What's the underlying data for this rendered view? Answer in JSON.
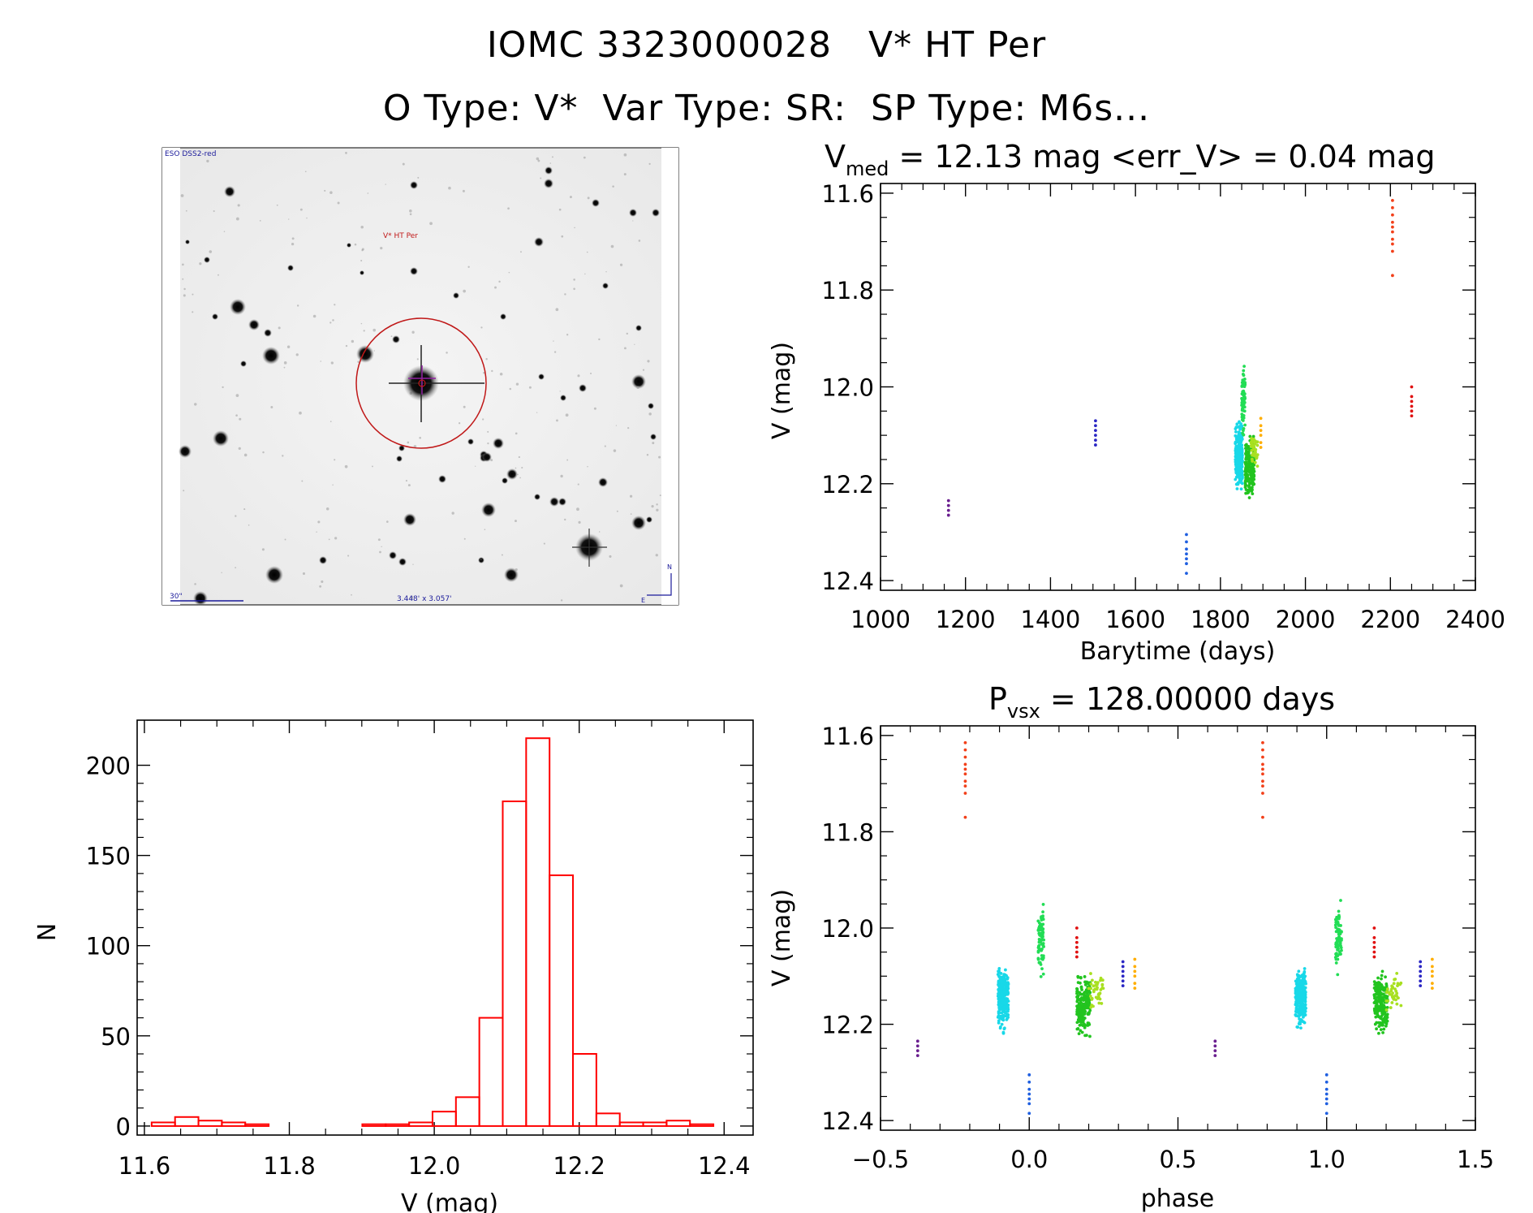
{
  "header": {
    "line1": "IOMC 3323000028   V* HT Per",
    "line2": "O Type: V*  Var Type: SR:  SP Type: M6s..."
  },
  "finder": {
    "survey_label": "ESO DSS2-red",
    "target_label": "V* HT Per",
    "scale_label": "30\"",
    "fov_label": "3.448' x 3.057'",
    "north_label": "N",
    "east_label": "E"
  },
  "chart_data": [
    {
      "id": "lightcurve",
      "type": "scatter",
      "title_main": "V",
      "title_sub": "med",
      "title_rest": " = 12.13 mag <err_V> = 0.04 mag",
      "xlabel": "Barytime (days)",
      "ylabel": "V (mag)",
      "xlim": [
        1000,
        2400
      ],
      "ylim": [
        12.42,
        11.58
      ],
      "xticks": [
        1000,
        1200,
        1400,
        1600,
        1800,
        2000,
        2200,
        2400
      ],
      "xtick_labels": [
        "1000",
        "1200",
        "1400",
        "1600",
        "1800",
        "2000",
        "2200",
        "2400"
      ],
      "yticks": [
        11.6,
        11.8,
        12.0,
        12.2,
        12.4
      ],
      "ytick_labels": [
        "11.6",
        "11.8",
        "12.0",
        "12.2",
        "12.4"
      ],
      "series": [
        {
          "name": "purple",
          "color": "#6a1f8f",
          "x": 1160,
          "y": [
            12.235,
            12.245,
            12.255,
            12.265
          ]
        },
        {
          "name": "indigo",
          "color": "#2a26c4",
          "x": 1506,
          "y": [
            12.07,
            12.08,
            12.09,
            12.1,
            12.11,
            12.12
          ]
        },
        {
          "name": "blue",
          "color": "#1f5fe0",
          "x": 1720,
          "y": [
            12.305,
            12.32,
            12.335,
            12.345,
            12.355,
            12.365,
            12.385
          ]
        },
        {
          "name": "cyan",
          "color": "#18d8e8",
          "x_range": [
            1835,
            1852
          ],
          "y_range": [
            12.06,
            12.23
          ],
          "n": 260
        },
        {
          "name": "spring-green",
          "color": "#22dd55",
          "x_range": [
            1850,
            1858
          ],
          "y_range": [
            11.93,
            12.12
          ],
          "n": 70
        },
        {
          "name": "green",
          "color": "#22c41f",
          "x_range": [
            1858,
            1880
          ],
          "y_range": [
            12.08,
            12.24
          ],
          "n": 200
        },
        {
          "name": "yellow-green",
          "color": "#a8e020",
          "x_range": [
            1872,
            1888
          ],
          "y_range": [
            12.08,
            12.18
          ],
          "n": 40
        },
        {
          "name": "orange",
          "color": "#ffae00",
          "x": 1895,
          "y": [
            12.065,
            12.08,
            12.09,
            12.1,
            12.115,
            12.125
          ]
        },
        {
          "name": "red-orange",
          "color": "#f2401a",
          "x": 2205,
          "y": [
            11.615,
            11.63,
            11.645,
            11.66,
            11.67,
            11.68,
            11.695,
            11.705,
            11.72,
            11.77
          ]
        },
        {
          "name": "red",
          "color": "#e01010",
          "x": 2250,
          "y": [
            12.0,
            12.02,
            12.03,
            12.04,
            12.05,
            12.06
          ]
        }
      ]
    },
    {
      "id": "histogram",
      "type": "bar",
      "xlabel": "V (mag)",
      "ylabel": "N",
      "xlim": [
        11.59,
        12.44
      ],
      "ylim": [
        -5,
        225
      ],
      "xticks": [
        11.6,
        11.8,
        12.0,
        12.2,
        12.4
      ],
      "xtick_labels": [
        "11.6",
        "11.8",
        "12.0",
        "12.2",
        "12.4"
      ],
      "yticks": [
        0,
        50,
        100,
        150,
        200
      ],
      "ytick_labels": [
        "0",
        "50",
        "100",
        "150",
        "200"
      ],
      "bar_color": "#ff0000",
      "bin_start": 11.61,
      "bin_width": 0.0323,
      "values": [
        2,
        5,
        3,
        2,
        1,
        0,
        0,
        0,
        0,
        1,
        1,
        2,
        8,
        16,
        60,
        180,
        215,
        139,
        40,
        7,
        2,
        2,
        3,
        1,
        0
      ]
    },
    {
      "id": "phased",
      "type": "scatter",
      "title_main": "P",
      "title_sub": "vsx",
      "title_rest": " = 128.00000 days",
      "xlabel": "phase",
      "ylabel": "V (mag)",
      "xlim": [
        -0.5,
        1.5
      ],
      "ylim": [
        12.42,
        11.58
      ],
      "xticks": [
        -0.5,
        0.0,
        0.5,
        1.0,
        1.5
      ],
      "xtick_labels": [
        "−0.5",
        "0.0",
        "0.5",
        "1.0",
        "1.5"
      ],
      "yticks": [
        11.6,
        11.8,
        12.0,
        12.2,
        12.4
      ],
      "ytick_labels": [
        "11.6",
        "11.8",
        "12.0",
        "12.2",
        "12.4"
      ],
      "series": [
        {
          "name": "purple",
          "color": "#6a1f8f",
          "phase": -0.375,
          "y": [
            12.235,
            12.245,
            12.255,
            12.265
          ]
        },
        {
          "name": "red-orange",
          "color": "#f2401a",
          "phase": -0.215,
          "y": [
            11.615,
            11.63,
            11.645,
            11.66,
            11.67,
            11.68,
            11.695,
            11.705,
            11.72,
            11.77
          ]
        },
        {
          "name": "cyan",
          "color": "#18d8e8",
          "phase_range": [
            -0.105,
            -0.07
          ],
          "y_range": [
            12.06,
            12.23
          ],
          "n": 260
        },
        {
          "name": "blue",
          "color": "#1f5fe0",
          "phase": 0.0,
          "y": [
            12.305,
            12.32,
            12.335,
            12.345,
            12.355,
            12.365,
            12.385
          ]
        },
        {
          "name": "spring-green",
          "color": "#22dd55",
          "phase_range": [
            0.03,
            0.05
          ],
          "y_range": [
            11.93,
            12.12
          ],
          "n": 70
        },
        {
          "name": "red",
          "color": "#e01010",
          "phase": 0.16,
          "y": [
            12.0,
            12.02,
            12.03,
            12.04,
            12.05,
            12.06
          ]
        },
        {
          "name": "green",
          "color": "#22c41f",
          "phase_range": [
            0.16,
            0.205
          ],
          "y_range": [
            12.08,
            12.24
          ],
          "n": 200
        },
        {
          "name": "yellow-green",
          "color": "#a8e020",
          "phase_range": [
            0.2,
            0.25
          ],
          "y_range": [
            12.08,
            12.18
          ],
          "n": 40
        },
        {
          "name": "indigo",
          "color": "#2a26c4",
          "phase": 0.315,
          "y": [
            12.07,
            12.08,
            12.09,
            12.1,
            12.11,
            12.12
          ]
        },
        {
          "name": "orange",
          "color": "#ffae00",
          "phase": 0.355,
          "y": [
            12.065,
            12.08,
            12.09,
            12.1,
            12.115,
            12.125
          ]
        }
      ]
    }
  ]
}
